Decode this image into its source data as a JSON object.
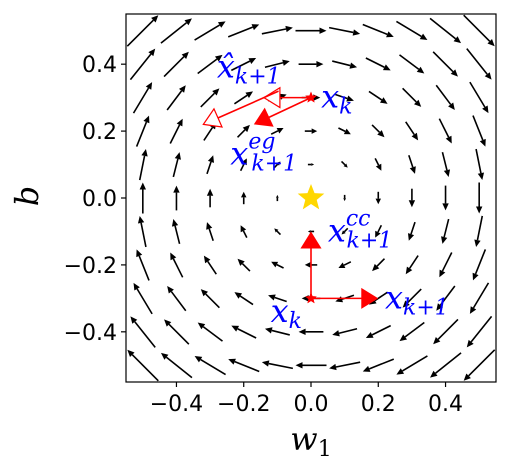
{
  "chart_data": {
    "type": "quiver",
    "xlabel": "w_1",
    "ylabel": "b",
    "xlim": [
      -0.55,
      0.55
    ],
    "ylim": [
      -0.55,
      0.55
    ],
    "x_ticks": [
      -0.4,
      -0.2,
      0.0,
      0.2,
      0.4
    ],
    "x_tick_labels": [
      "−0.4",
      "−0.2",
      "0.0",
      "0.2",
      "0.4"
    ],
    "y_ticks": [
      -0.4,
      -0.2,
      0.0,
      0.2,
      0.4
    ],
    "y_tick_labels": [
      "−0.4",
      "−0.2",
      "0.0",
      "0.2",
      "0.4"
    ],
    "grid": false,
    "vector_field": {
      "grid_x": [
        -0.5,
        -0.4,
        -0.3,
        -0.2,
        -0.1,
        0.0,
        0.1,
        0.2,
        0.3,
        0.4,
        0.5
      ],
      "grid_y": [
        -0.5,
        -0.4,
        -0.3,
        -0.2,
        -0.1,
        0.0,
        0.1,
        0.2,
        0.3,
        0.4,
        0.5
      ],
      "field": "rotation: (u, v) = (b, -w_1)",
      "color": "#000000"
    },
    "optimum": {
      "x": 0.0,
      "y": 0.0,
      "marker": "star",
      "color": "#ffd700"
    },
    "trajectories": [
      {
        "from": {
          "x": 0.0,
          "y": 0.3
        },
        "to": {
          "x": -0.32,
          "y": 0.22
        },
        "via": {
          "x": -0.14,
          "y": 0.3
        },
        "style": "hollow",
        "color": "#ff0000"
      },
      {
        "from": {
          "x": 0.0,
          "y": 0.3
        },
        "to": {
          "x": -0.17,
          "y": 0.22
        },
        "style": "filled",
        "color": "#ff0000"
      },
      {
        "from": {
          "x": 0.0,
          "y": -0.3
        },
        "to": {
          "x": 0.0,
          "y": -0.1
        },
        "style": "filled",
        "color": "#ff0000"
      },
      {
        "from": {
          "x": 0.0,
          "y": -0.3
        },
        "to": {
          "x": 0.2,
          "y": -0.3
        },
        "style": "filled",
        "color": "#ff0000"
      }
    ],
    "annotations": [
      {
        "main": "x̂",
        "sub": "k+1",
        "sup": "",
        "x": -0.28,
        "y": 0.36
      },
      {
        "main": "x",
        "sub": "k",
        "sup": "",
        "x": 0.03,
        "y": 0.27
      },
      {
        "main": "x",
        "sub": "k+1",
        "sup": "eg",
        "x": -0.24,
        "y": 0.1
      },
      {
        "main": "x",
        "sub": "k+1",
        "sup": "cc",
        "x": 0.05,
        "y": -0.13
      },
      {
        "main": "x",
        "sub": "k",
        "sup": "",
        "x": -0.12,
        "y": -0.37
      },
      {
        "main": "x",
        "sub": "k+1",
        "sup": "",
        "x": 0.22,
        "y": -0.33
      }
    ],
    "annotation_color": "#0000ff"
  }
}
